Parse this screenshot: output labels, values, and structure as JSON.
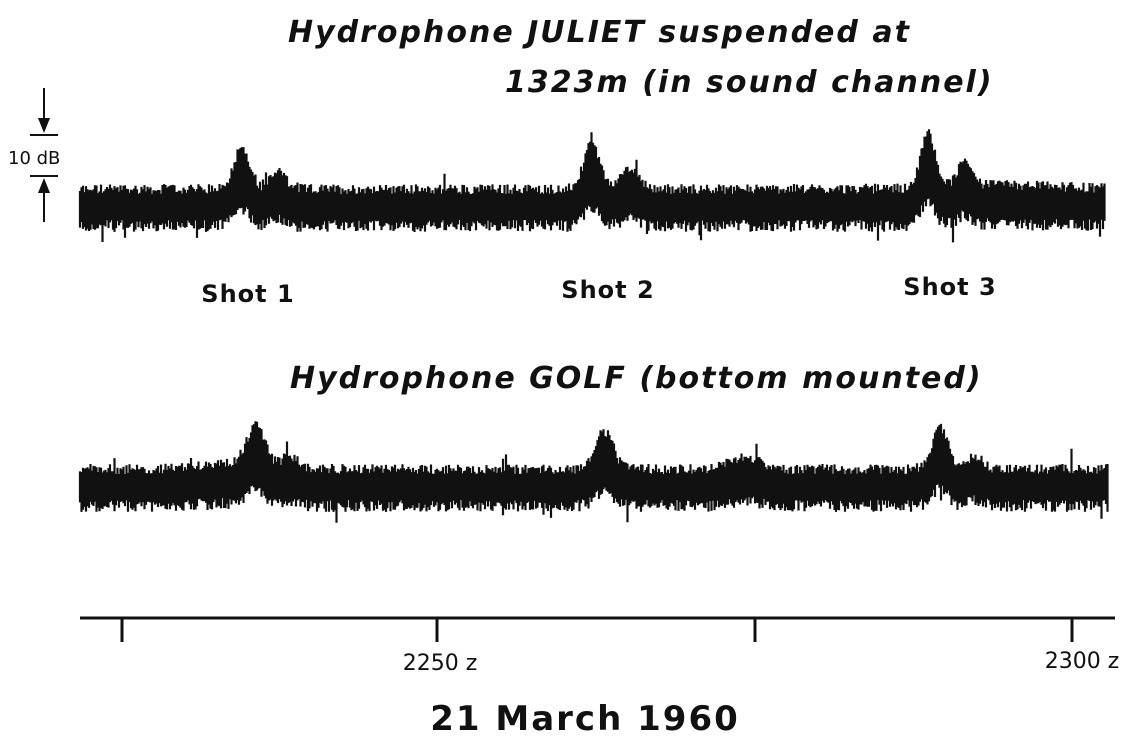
{
  "figure": {
    "trace_1_title": [
      "Hydrophone JULIET suspended at",
      "1323m (in sound channel)"
    ],
    "scale_label": "10 dB",
    "shots": [
      "Shot 1",
      "Shot 2",
      "Shot 3"
    ],
    "trace_2_title": "Hydrophone GOLF (bottom mounted)",
    "time_ticks": [
      "2250 z",
      "2300 z"
    ],
    "date": "21 March 1960"
  }
}
